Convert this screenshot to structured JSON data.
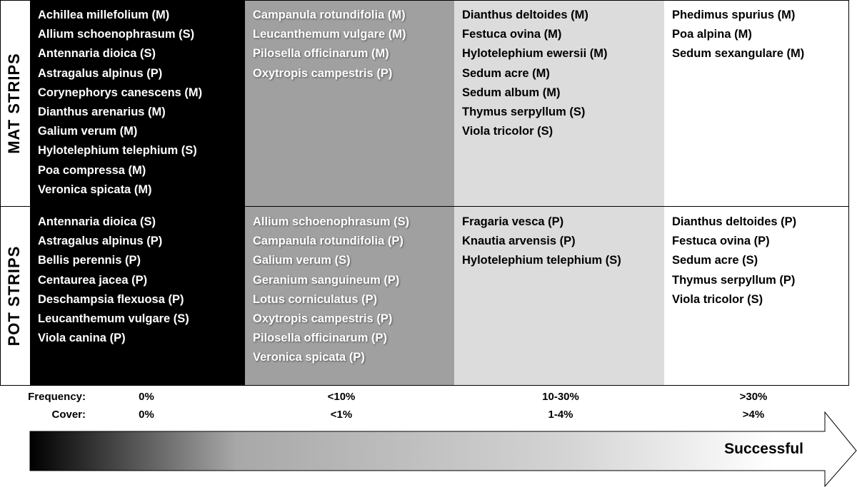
{
  "rows": [
    {
      "label": "MAT STRIPS",
      "cells": [
        [
          "Achillea millefolium (M)",
          "Allium schoenophrasum (S)",
          "Antennaria dioica (S)",
          "Astragalus alpinus (P)",
          "Corynephorys canescens (M)",
          "Dianthus arenarius (M)",
          "Galium verum (M)",
          "Hylotelephium telephium (S)",
          "Poa compressa (M)",
          "Veronica spicata (M)"
        ],
        [
          "Campanula rotundifolia (M)",
          "Leucanthemum vulgare (M)",
          "Pilosella officinarum (M)",
          "Oxytropis campestris (P)"
        ],
        [
          "Dianthus deltoides (M)",
          "Festuca ovina (M)",
          "Hylotelephium ewersii (M)",
          "Sedum acre (M)",
          "Sedum album (M)",
          "Thymus serpyllum (S)",
          "Viola tricolor (S)"
        ],
        [
          "Phedimus spurius (M)",
          "Poa alpina (M)",
          "Sedum sexangulare (M)"
        ]
      ]
    },
    {
      "label": "POT STRIPS",
      "cells": [
        [
          "Antennaria dioica (S)",
          "Astragalus alpinus (P)",
          "Bellis perennis (P)",
          "Centaurea jacea (P)",
          "Deschampsia flexuosa (P)",
          "Leucanthemum vulgare (S)",
          "Viola canina (P)"
        ],
        [
          "Allium schoenophrasum (S)",
          "Campanula rotundifolia (P)",
          "Galium verum (S)",
          "Geranium sanguineum (P)",
          "Lotus corniculatus (P)",
          "Oxytropis campestris (P)",
          "Pilosella officinarum (P)",
          "Veronica spicata (P)"
        ],
        [
          "Fragaria vesca (P)",
          "Knautia arvensis (P)",
          "Hylotelephium telephium (S)"
        ],
        [
          "Dianthus deltoides (P)",
          "Festuca ovina (P)",
          "Sedum acre (S)",
          "Thymus serpyllum (P)",
          "Viola tricolor (S)"
        ]
      ]
    }
  ],
  "scale": [
    {
      "label": "Frequency:",
      "values": [
        "0%",
        "<10%",
        "10-30%",
        ">30%"
      ]
    },
    {
      "label": "Cover:",
      "values": [
        "0%",
        "<1%",
        "1-4%",
        ">4%"
      ]
    }
  ],
  "arrow": "Successful"
}
